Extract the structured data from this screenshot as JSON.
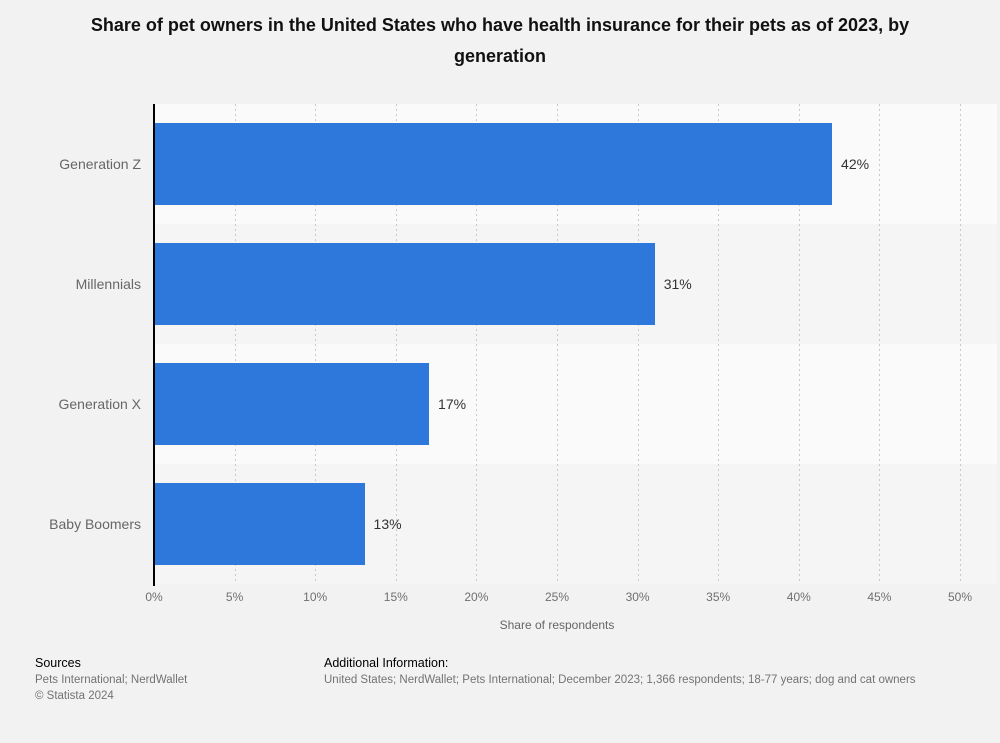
{
  "title": "Share of pet owners in the United States who have health insurance for their pets as of 2023, by generation",
  "chart_data": {
    "type": "bar",
    "orientation": "horizontal",
    "categories": [
      "Generation Z",
      "Millennials",
      "Generation X",
      "Baby Boomers"
    ],
    "values": [
      42,
      31,
      17,
      13
    ],
    "value_labels": [
      "42%",
      "31%",
      "17%",
      "13%"
    ],
    "xlabel": "Share of respondents",
    "ylabel": "",
    "xlim": [
      0,
      50
    ],
    "x_ticks": [
      "0%",
      "5%",
      "10%",
      "15%",
      "20%",
      "25%",
      "30%",
      "35%",
      "40%",
      "45%",
      "50%"
    ],
    "grid": "dotted vertical gridlines every 5%",
    "legend": "none",
    "bar_color": "#2e78dc"
  },
  "footer": {
    "sources_heading": "Sources",
    "sources_line": "Pets International; NerdWallet",
    "copyright_line": "© Statista 2024",
    "additional_heading": "Additional Information:",
    "additional_line": "United States; NerdWallet; Pets International; December 2023; 1,366 respondents; 18-77 years; dog and cat owners"
  }
}
